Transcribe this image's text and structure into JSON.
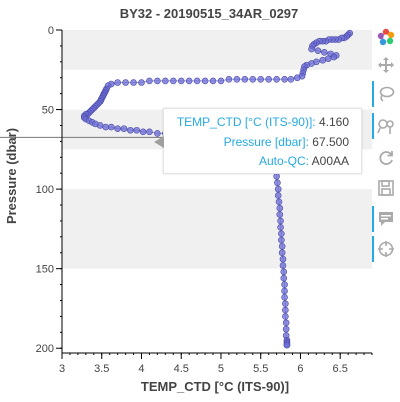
{
  "chart_data": {
    "type": "scatter",
    "title": "BY32 - 20190515_34AR_0297",
    "xlabel": "TEMP_CTD [°C (ITS-90)]",
    "ylabel": "Pressure (dbar)",
    "xlim": [
      3.0,
      6.9
    ],
    "ylim": [
      0,
      203
    ],
    "y_inverted": true,
    "x_ticks": [
      "3",
      "3.5",
      "4",
      "4.5",
      "5",
      "5.5",
      "6",
      "6.5"
    ],
    "y_ticks": [
      "0",
      "50",
      "100",
      "150",
      "200"
    ],
    "x_tick_values": [
      3,
      3.5,
      4,
      4.5,
      5,
      5.5,
      6,
      6.5
    ],
    "y_tick_values": [
      0,
      50,
      100,
      150,
      200
    ],
    "x_minor_step": 0.1,
    "y_minor_step": 10,
    "background_bands": [
      [
        0,
        25
      ],
      [
        50,
        75
      ],
      [
        100,
        150
      ]
    ],
    "band_color": "#f0f0f0",
    "marker_color": "#6c6cd6",
    "line_color": "#8080cc",
    "crosshair_pressure": 67.5,
    "series": [
      {
        "x": [
          6.62,
          6.6,
          6.58,
          6.55,
          6.52,
          6.48,
          6.44,
          6.4,
          6.36,
          6.32,
          6.28,
          6.24,
          6.2,
          6.17,
          6.15,
          6.14,
          6.22,
          6.3,
          6.38,
          6.45,
          6.42,
          6.35,
          6.28,
          6.2,
          6.14,
          6.08,
          6.05,
          6.04,
          6.03,
          6.02,
          5.96,
          5.88,
          5.8,
          5.7,
          5.6,
          5.5,
          5.4,
          5.3,
          5.2,
          5.1,
          5.0,
          4.9,
          4.8,
          4.7,
          4.6,
          4.5,
          4.4,
          4.3,
          4.2,
          4.1,
          4.0,
          3.9,
          3.8,
          3.7,
          3.62,
          3.58,
          3.56,
          3.55,
          3.54,
          3.53,
          3.52,
          3.51,
          3.5,
          3.49,
          3.48,
          3.46,
          3.44,
          3.42,
          3.4,
          3.38,
          3.36,
          3.34,
          3.32,
          3.3,
          3.28,
          3.28,
          3.3,
          3.34,
          3.38,
          3.42,
          3.48,
          3.55,
          3.62,
          3.7,
          3.78,
          3.86,
          3.94,
          4.02,
          4.1,
          4.2,
          4.3,
          4.42,
          4.56,
          4.7,
          4.84,
          4.98,
          5.1,
          5.22,
          5.32,
          5.4,
          5.46,
          5.52,
          5.56,
          5.6,
          5.63,
          5.65,
          5.67,
          5.68,
          5.69,
          5.7,
          5.71,
          5.72,
          5.72,
          5.73,
          5.74,
          5.74,
          5.75,
          5.75,
          5.76,
          5.76,
          5.77,
          5.77,
          5.78,
          5.78,
          5.79,
          5.79,
          5.8,
          5.8,
          5.8,
          5.81,
          5.81,
          5.81,
          5.82,
          5.82,
          5.82,
          5.83,
          5.83,
          5.83,
          5.83,
          5.83
        ],
        "y": [
          2,
          3,
          4,
          5,
          5,
          6,
          6,
          6,
          6,
          7,
          7,
          7,
          8,
          9,
          10,
          12,
          13,
          14,
          15,
          16,
          17,
          18,
          19,
          20,
          21,
          22,
          23,
          25,
          27,
          29,
          30,
          31,
          31,
          31,
          31,
          31,
          31,
          31,
          31,
          31,
          32,
          32,
          32,
          32,
          32,
          32,
          32,
          32,
          32,
          32,
          33,
          33,
          33,
          33,
          34,
          35,
          37,
          38,
          39,
          40,
          41,
          42,
          43,
          44,
          45,
          46,
          47,
          48,
          49,
          50,
          51,
          52,
          53,
          53,
          54,
          55,
          56,
          57,
          58,
          59,
          60,
          61,
          61,
          62,
          62,
          63,
          63,
          64,
          64,
          65,
          65,
          65,
          65,
          66,
          66,
          66,
          67,
          67,
          68,
          69,
          70,
          72,
          74,
          76,
          78,
          80,
          82,
          85,
          88,
          92,
          96,
          100,
          104,
          108,
          112,
          116,
          120,
          124,
          128,
          132,
          136,
          140,
          144,
          148,
          152,
          156,
          160,
          164,
          168,
          172,
          176,
          180,
          184,
          188,
          192,
          195,
          196,
          197,
          198,
          198
        ]
      }
    ],
    "tooltip": {
      "rows": [
        {
          "key": "TEMP_CTD [°C (ITS-90)]:",
          "value": "4.160"
        },
        {
          "key": "Pressure [dbar]:",
          "value": "67.500"
        },
        {
          "key": "Auto-QC:",
          "value": "A00AA"
        }
      ]
    },
    "toolbar": [
      {
        "icon": "bokeh-logo-icon",
        "active": false
      },
      {
        "icon": "pan-icon",
        "active": false
      },
      {
        "icon": "lasso-select-icon",
        "active": true
      },
      {
        "icon": "wheel-zoom-icon",
        "active": true
      },
      {
        "icon": "reset-icon",
        "active": false
      },
      {
        "icon": "save-icon",
        "active": false
      },
      {
        "icon": "hover-icon",
        "active": true
      },
      {
        "icon": "crosshair-icon",
        "active": true
      }
    ]
  }
}
